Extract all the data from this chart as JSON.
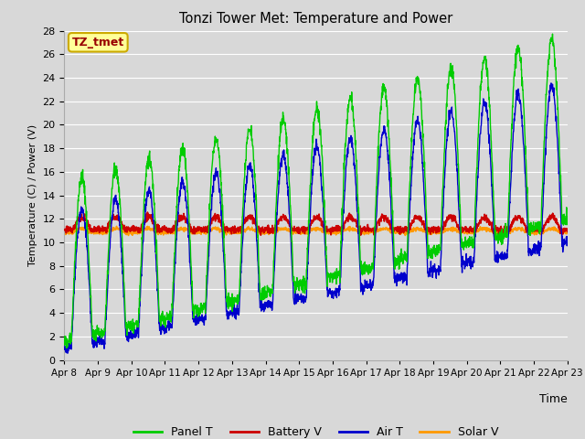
{
  "title": "Tonzi Tower Met: Temperature and Power",
  "xlabel": "Time",
  "ylabel": "Temperature (C) / Power (V)",
  "ylim": [
    0,
    28
  ],
  "yticks": [
    0,
    2,
    4,
    6,
    8,
    10,
    12,
    14,
    16,
    18,
    20,
    22,
    24,
    26,
    28
  ],
  "xtick_labels": [
    "Apr 8",
    "Apr 9",
    "Apr 10",
    "Apr 11",
    "Apr 12",
    "Apr 13",
    "Apr 14",
    "Apr 15",
    "Apr 16",
    "Apr 17",
    "Apr 18",
    "Apr 19",
    "Apr 20",
    "Apr 21",
    "Apr 22",
    "Apr 23"
  ],
  "legend_labels": [
    "Panel T",
    "Battery V",
    "Air T",
    "Solar V"
  ],
  "legend_colors": [
    "#00cc00",
    "#cc0000",
    "#0000cc",
    "#ff9900"
  ],
  "annotation_text": "TZ_tmet",
  "annotation_bg": "#ffff99",
  "annotation_fg": "#990000",
  "fig_bg": "#d8d8d8",
  "plot_bg": "#d8d8d8",
  "grid_color": "#ffffff",
  "panel_t_color": "#00cc00",
  "battery_v_color": "#cc0000",
  "air_t_color": "#0000cc",
  "solar_v_color": "#ff9900",
  "n_days": 15,
  "points_per_day": 144
}
